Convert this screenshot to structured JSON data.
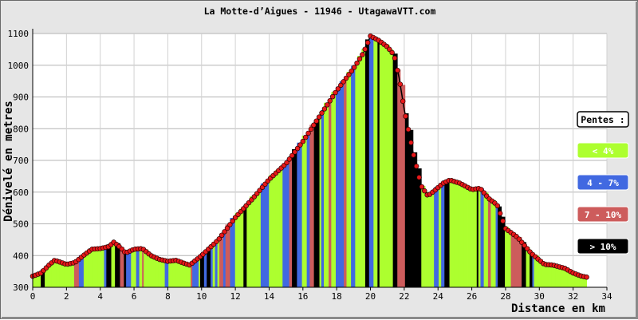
{
  "chart_data": {
    "type": "area",
    "title": "La Motte-d’Aigues - 11946 - UtagawaVTT.com",
    "xlabel": "Distance en km",
    "ylabel": "Dénivelé en metres",
    "xlim": [
      0,
      34
    ],
    "ylim": [
      300,
      1100
    ],
    "x_ticks": [
      "0",
      "2",
      "4",
      "6",
      "8",
      "10",
      "12",
      "14",
      "16",
      "18",
      "20",
      "22",
      "24",
      "26",
      "28",
      "30",
      "32",
      "34"
    ],
    "y_ticks": [
      "300",
      "400",
      "500",
      "600",
      "700",
      "800",
      "900",
      "1000",
      "1100"
    ],
    "grid": true,
    "legend_position": "right",
    "profile": [
      {
        "x": 0.0,
        "y": 335
      },
      {
        "x": 0.5,
        "y": 345
      },
      {
        "x": 1.0,
        "y": 372
      },
      {
        "x": 1.3,
        "y": 385
      },
      {
        "x": 1.7,
        "y": 378
      },
      {
        "x": 2.0,
        "y": 372
      },
      {
        "x": 2.5,
        "y": 378
      },
      {
        "x": 3.0,
        "y": 400
      },
      {
        "x": 3.5,
        "y": 420
      },
      {
        "x": 4.0,
        "y": 422
      },
      {
        "x": 4.5,
        "y": 428
      },
      {
        "x": 4.8,
        "y": 442
      },
      {
        "x": 5.2,
        "y": 425
      },
      {
        "x": 5.5,
        "y": 408
      },
      {
        "x": 6.0,
        "y": 420
      },
      {
        "x": 6.5,
        "y": 422
      },
      {
        "x": 7.0,
        "y": 400
      },
      {
        "x": 7.5,
        "y": 388
      },
      {
        "x": 8.0,
        "y": 382
      },
      {
        "x": 8.5,
        "y": 385
      },
      {
        "x": 9.0,
        "y": 375
      },
      {
        "x": 9.3,
        "y": 370
      },
      {
        "x": 10.0,
        "y": 400
      },
      {
        "x": 11.0,
        "y": 450
      },
      {
        "x": 12.0,
        "y": 520
      },
      {
        "x": 13.0,
        "y": 578
      },
      {
        "x": 14.0,
        "y": 640
      },
      {
        "x": 15.0,
        "y": 690
      },
      {
        "x": 16.0,
        "y": 760
      },
      {
        "x": 17.0,
        "y": 840
      },
      {
        "x": 18.0,
        "y": 920
      },
      {
        "x": 19.0,
        "y": 990
      },
      {
        "x": 19.6,
        "y": 1040
      },
      {
        "x": 20.0,
        "y": 1092
      },
      {
        "x": 20.5,
        "y": 1078
      },
      {
        "x": 21.0,
        "y": 1058
      },
      {
        "x": 21.4,
        "y": 1032
      },
      {
        "x": 21.7,
        "y": 960
      },
      {
        "x": 22.0,
        "y": 860
      },
      {
        "x": 22.5,
        "y": 730
      },
      {
        "x": 23.0,
        "y": 620
      },
      {
        "x": 23.4,
        "y": 588
      },
      {
        "x": 23.8,
        "y": 605
      },
      {
        "x": 24.3,
        "y": 628
      },
      {
        "x": 24.7,
        "y": 638
      },
      {
        "x": 25.3,
        "y": 628
      },
      {
        "x": 26.0,
        "y": 608
      },
      {
        "x": 26.5,
        "y": 612
      },
      {
        "x": 27.0,
        "y": 580
      },
      {
        "x": 27.5,
        "y": 560
      },
      {
        "x": 28.0,
        "y": 485
      },
      {
        "x": 28.7,
        "y": 458
      },
      {
        "x": 29.5,
        "y": 408
      },
      {
        "x": 30.3,
        "y": 372
      },
      {
        "x": 30.8,
        "y": 370
      },
      {
        "x": 31.5,
        "y": 360
      },
      {
        "x": 32.0,
        "y": 345
      },
      {
        "x": 32.5,
        "y": 335
      },
      {
        "x": 32.8,
        "y": 332
      }
    ],
    "legend": {
      "title": "Pentes :",
      "items": [
        {
          "label": "< 4%",
          "color": "#adff2f",
          "text_color": "#ffffff"
        },
        {
          "label": "4 - 7%",
          "color": "#4169e1",
          "text_color": "#ffffff"
        },
        {
          "label": "7 - 10%",
          "color": "#cd5c5c",
          "text_color": "#ffffff"
        },
        {
          "label": "> 10%",
          "color": "#000000",
          "text_color": "#ffffff"
        }
      ]
    },
    "colors": {
      "marker": "#e8181a",
      "profile_line": "#000000",
      "grid": "#b4b4b4",
      "plot_background": "#ffffff",
      "frame_background": "#e6e6e6"
    }
  }
}
